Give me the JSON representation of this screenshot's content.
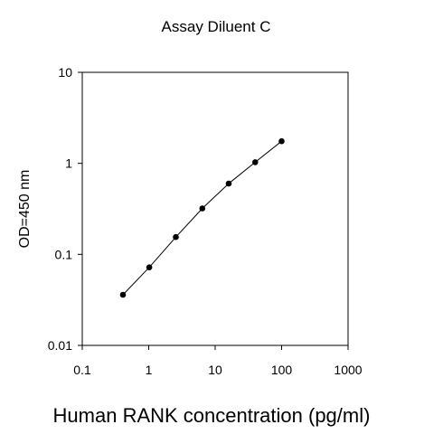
{
  "chart_data": {
    "type": "line",
    "title": "Assay Diluent C",
    "xlabel": "Human RANK concentration (pg/ml)",
    "ylabel": "OD=450 nm",
    "xscale": "log",
    "yscale": "log",
    "xlim": [
      0.1,
      1000
    ],
    "ylim": [
      0.01,
      10
    ],
    "xticks": [
      "0.1",
      "1",
      "10",
      "100",
      "1000"
    ],
    "yticks": [
      "0.01",
      "0.1",
      "1",
      "10"
    ],
    "grid": false,
    "legend": "none",
    "colors": {
      "line": "#000000",
      "marker": "#000000",
      "frame": "#000000"
    },
    "series": [
      {
        "x": [
          0.41,
          1.02,
          2.56,
          6.4,
          16,
          40,
          100
        ],
        "y": [
          0.036,
          0.072,
          0.155,
          0.32,
          0.6,
          1.03,
          1.75
        ]
      }
    ]
  }
}
